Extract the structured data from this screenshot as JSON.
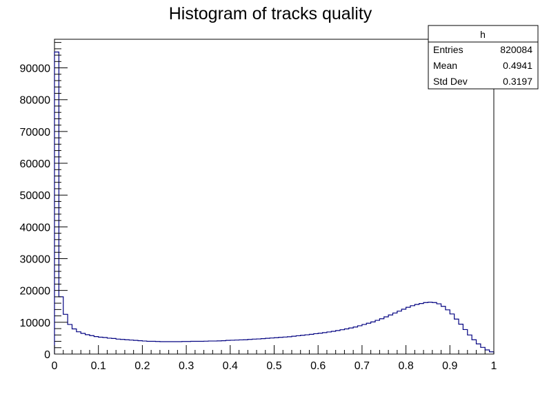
{
  "chart_data": {
    "type": "histogram",
    "title": "Histogram of tracks quality",
    "xlabel": "",
    "ylabel": "",
    "xlim": [
      0,
      1
    ],
    "ylim": [
      0,
      99000
    ],
    "bin_width": 0.01,
    "x_ticks": [
      "0",
      "0.1",
      "0.2",
      "0.3",
      "0.4",
      "0.5",
      "0.6",
      "0.7",
      "0.8",
      "0.9",
      "1"
    ],
    "y_ticks": [
      "0",
      "10000",
      "20000",
      "30000",
      "40000",
      "50000",
      "60000",
      "70000",
      "80000",
      "90000"
    ],
    "line_color": "#000080",
    "values": [
      95000,
      18000,
      12500,
      9300,
      7900,
      7000,
      6500,
      6100,
      5800,
      5500,
      5300,
      5200,
      5000,
      4900,
      4700,
      4600,
      4500,
      4400,
      4300,
      4200,
      4100,
      4000,
      4000,
      3950,
      3900,
      3900,
      3900,
      3900,
      3900,
      3950,
      3950,
      4000,
      4000,
      4000,
      4050,
      4100,
      4100,
      4150,
      4200,
      4300,
      4350,
      4400,
      4450,
      4500,
      4600,
      4700,
      4750,
      4850,
      4950,
      5050,
      5150,
      5250,
      5350,
      5450,
      5600,
      5750,
      5900,
      6050,
      6200,
      6400,
      6550,
      6750,
      6950,
      7150,
      7400,
      7650,
      7900,
      8200,
      8500,
      8900,
      9300,
      9700,
      10100,
      10600,
      11100,
      11700,
      12300,
      12900,
      13500,
      14100,
      14700,
      15200,
      15600,
      15900,
      16200,
      16300,
      16200,
      15800,
      15000,
      13900,
      12600,
      11000,
      9400,
      7700,
      6000,
      4500,
      3200,
      2100,
      1300,
      700
    ]
  },
  "stats_box": {
    "name": "h",
    "rows": [
      {
        "label": "Entries",
        "value": "820084"
      },
      {
        "label": "Mean",
        "value": "0.4941"
      },
      {
        "label": "Std Dev",
        "value": "0.3197"
      }
    ]
  }
}
